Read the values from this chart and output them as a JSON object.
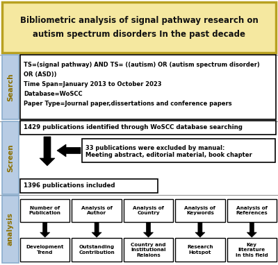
{
  "title_line1": "Bibliometric analysis of signal pathway research on",
  "title_line2": "autism spectrum disorders In the past decade",
  "title_bg": "#F5E8A0",
  "title_border": "#B8A020",
  "search_label": "Search",
  "search_bg": "#B8CCE4",
  "search_text_lines": [
    "TS=(signal pathway) AND TS= ((autism) OR (autism spectrum disorder)",
    "OR (ASD))",
    "Time Span=January 2013 to October 2023",
    "Database=WoSCC",
    "Paper Type=Journal paper,dissertations and conference papers"
  ],
  "screen_label": "Screen",
  "screen_bg": "#B8CCE4",
  "pub1429": "1429 publications identified through WoSCC database searching",
  "excluded_line1": "33 publications were excluded by manual:",
  "excluded_line2": "Meeting abstract, editorial material, book chapter",
  "pub1396": "1396 publications included",
  "analysis_label": "analysis",
  "analysis_bg": "#B8CCE4",
  "top_boxes": [
    "Number of\nPublication",
    "Analysis of\nAuthor",
    "Analysis of\nCountry",
    "Analysis of\nKeywords",
    "Analysis of\nReferences"
  ],
  "bottom_boxes": [
    "Development\nTrend",
    "Outstanding\nContribution",
    "Country and\nInstitutional\nRelaions",
    "Research\nHotspot",
    "Key\nliterature\nin this field"
  ],
  "label_text_color": "#8B6F00",
  "fig_bg": "#FFFFFF"
}
